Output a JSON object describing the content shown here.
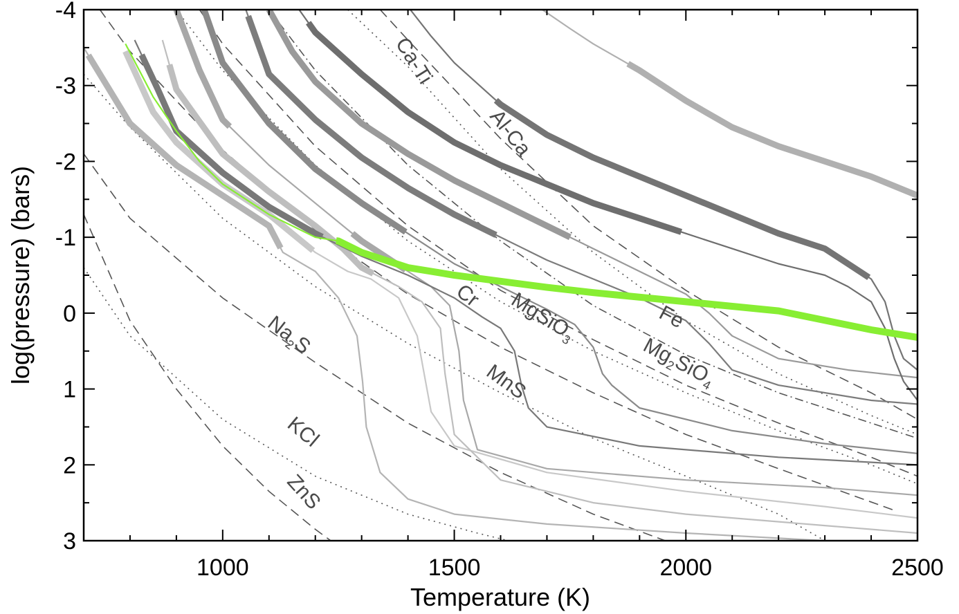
{
  "chart_data": {
    "type": "line",
    "title": "",
    "xlabel": "Temperature (K)",
    "ylabel": "log(pressure) (bars)",
    "xlim": [
      700,
      2500
    ],
    "ylim": [
      3,
      -4
    ],
    "y_inverted": true,
    "x_ticks": [
      1000,
      1500,
      2000,
      2500
    ],
    "x_tick_labels": [
      "1000",
      "1500",
      "2000",
      "2500"
    ],
    "y_ticks": [
      -4,
      -3,
      -2,
      -1,
      0,
      1,
      2,
      3
    ],
    "y_tick_labels": [
      "-4",
      "-3",
      "-2",
      "-1",
      "0",
      "1",
      "2",
      "3"
    ],
    "grid": false,
    "legend": "none",
    "condensation_curves": [
      {
        "label": "ZnS",
        "label_parts": [
          {
            "t": "ZnS"
          }
        ],
        "style": "dashed",
        "x": [
          700,
          800,
          900,
          1000,
          1100,
          1200,
          1300
        ],
        "y": [
          -1.3,
          0.1,
          1.0,
          1.75,
          2.35,
          2.85,
          3.3
        ]
      },
      {
        "label": "KCl",
        "label_parts": [
          {
            "t": "KCl"
          }
        ],
        "style": "dotted",
        "x": [
          700,
          800,
          1000,
          1200,
          1400,
          1550,
          1650
        ],
        "y": [
          -0.6,
          0.3,
          1.4,
          2.15,
          2.65,
          2.9,
          3.05
        ]
      },
      {
        "label": "Na2S",
        "label_parts": [
          {
            "t": "Na"
          },
          {
            "t": "2",
            "sub": true
          },
          {
            "t": "S"
          }
        ],
        "style": "dashed",
        "x": [
          700,
          800,
          1000,
          1200,
          1400,
          1600,
          1800,
          2000
        ],
        "y": [
          -2.1,
          -1.25,
          -0.2,
          0.65,
          1.45,
          2.1,
          2.65,
          3.1
        ]
      },
      {
        "label": "MnS",
        "label_parts": [
          {
            "t": "MnS"
          }
        ],
        "style": "dotted",
        "x": [
          700,
          800,
          1000,
          1200,
          1400,
          1600,
          1800,
          2000,
          2200,
          2300
        ],
        "y": [
          -3.15,
          -2.45,
          -1.25,
          -0.35,
          0.4,
          1.05,
          1.65,
          2.15,
          2.65,
          3.0
        ]
      },
      {
        "label": "Cr",
        "label_parts": [
          {
            "t": "Cr"
          }
        ],
        "style": "dashed",
        "x": [
          735,
          800,
          1000,
          1200,
          1400,
          1600,
          1800,
          2000,
          2200,
          2450
        ],
        "y": [
          -4.0,
          -3.45,
          -2.15,
          -1.1,
          -0.25,
          0.45,
          1.05,
          1.6,
          2.05,
          2.6
        ]
      },
      {
        "label": "MgSiO3",
        "label_parts": [
          {
            "t": "MgSiO"
          },
          {
            "t": "3",
            "sub": true
          }
        ],
        "style": "dotted",
        "x": [
          900,
          1000,
          1200,
          1400,
          1600,
          1800,
          2000,
          2200,
          2400,
          2500
        ],
        "y": [
          -4.0,
          -3.2,
          -1.95,
          -0.95,
          -0.15,
          0.5,
          1.05,
          1.55,
          2.0,
          2.25
        ]
      },
      {
        "label": "Mg2SiO4",
        "label_parts": [
          {
            "t": "Mg"
          },
          {
            "t": "2",
            "sub": true
          },
          {
            "t": "SiO"
          },
          {
            "t": "4",
            "sub": true
          }
        ],
        "style": "dashed",
        "x": [
          950,
          1000,
          1200,
          1400,
          1600,
          1800,
          2000,
          2200,
          2400,
          2500
        ],
        "y": [
          -4.0,
          -3.55,
          -2.2,
          -1.15,
          -0.3,
          0.35,
          0.95,
          1.45,
          1.9,
          2.15
        ]
      },
      {
        "label": "Fe",
        "label_parts": [
          {
            "t": "Fe"
          }
        ],
        "style": "dashdot",
        "x": [
          1100,
          1200,
          1400,
          1600,
          1800,
          2000,
          2200,
          2400,
          2500
        ],
        "y": [
          -4.0,
          -3.2,
          -1.95,
          -0.95,
          -0.1,
          0.55,
          1.05,
          1.45,
          1.65
        ]
      },
      {
        "label": "Al-Ca",
        "label_parts": [
          {
            "t": "Al-Ca"
          }
        ],
        "style": "dashed",
        "x": [
          1340,
          1400,
          1600,
          1800,
          2000,
          2200,
          2400,
          2500
        ],
        "y": [
          -4.0,
          -3.6,
          -2.3,
          -1.15,
          -0.3,
          0.45,
          1.05,
          1.4
        ]
      },
      {
        "label": "Ca-Ti",
        "label_parts": [
          {
            "t": "Ca-Ti"
          }
        ],
        "style": "dotted",
        "x": [
          1270,
          1400,
          1600,
          1800,
          2000,
          2200,
          2400,
          2500
        ],
        "y": [
          -4.0,
          -3.25,
          -1.9,
          -0.8,
          0.1,
          0.8,
          1.35,
          1.6
        ]
      }
    ],
    "pt_profiles": [
      {
        "name": "",
        "color": "#b4b4b4",
        "x": [
          700,
          800,
          900,
          1000,
          1050,
          1100,
          1130,
          1200,
          1250,
          1290,
          1302,
          1310,
          1340,
          1400,
          1500,
          1700,
          2000,
          2300,
          2500
        ],
        "y": [
          -3.5,
          -2.5,
          -1.95,
          -1.55,
          -1.35,
          -1.15,
          -0.8,
          -0.55,
          -0.2,
          0.3,
          0.9,
          1.5,
          2.1,
          2.45,
          2.65,
          2.78,
          2.9,
          3.0,
          3.1
        ],
        "thick": [
          [
            710,
            1125
          ]
        ]
      },
      {
        "name": "",
        "color": "#c8c8c8",
        "x": [
          790,
          850,
          900,
          1000,
          1100,
          1150,
          1200,
          1270,
          1320,
          1380,
          1420,
          1435,
          1450,
          1500,
          1700,
          2000,
          2300,
          2500
        ],
        "y": [
          -3.45,
          -2.65,
          -2.25,
          -1.7,
          -1.3,
          -1.05,
          -0.8,
          -0.55,
          -0.45,
          -0.2,
          0.3,
          0.8,
          1.3,
          1.75,
          2.1,
          2.35,
          2.55,
          2.7
        ],
        "thick": [
          [
            785,
            1195
          ]
        ]
      },
      {
        "name": "",
        "color": "#bebebe",
        "x": [
          870,
          900,
          1000,
          1100,
          1200,
          1260,
          1300,
          1380,
          1430,
          1470,
          1480,
          1500,
          1600,
          1800,
          2000,
          2300,
          2500
        ],
        "y": [
          -3.6,
          -2.95,
          -2.1,
          -1.6,
          -1.15,
          -0.85,
          -0.6,
          -0.35,
          -0.15,
          0.2,
          0.8,
          1.6,
          2.2,
          2.5,
          2.65,
          2.8,
          2.9
        ],
        "thick": [
          [
            885,
            1325
          ]
        ]
      },
      {
        "name": "",
        "color": "#a8a8a8",
        "x": [
          900,
          950,
          1000,
          1100,
          1200,
          1300,
          1400,
          1450,
          1490,
          1510,
          1520,
          1550,
          1700,
          2000,
          2300,
          2500
        ],
        "y": [
          -4.0,
          -3.2,
          -2.55,
          -1.95,
          -1.45,
          -0.95,
          -0.55,
          -0.35,
          -0.1,
          0.5,
          1.15,
          1.8,
          2.05,
          2.2,
          2.3,
          2.4
        ],
        "thick": [
          [
            780,
            1015
          ],
          [
            1280,
            1395
          ]
        ]
      },
      {
        "name": "",
        "color": "#787878",
        "x": [
          810,
          860,
          900,
          1000,
          1100,
          1200,
          1300,
          1400,
          1500,
          1560,
          1600,
          1630,
          1645,
          1660,
          1700,
          1900,
          2200,
          2500
        ],
        "y": [
          -3.6,
          -2.95,
          -2.4,
          -1.85,
          -1.4,
          -1.05,
          -0.75,
          -0.5,
          -0.2,
          0.05,
          0.2,
          0.5,
          0.95,
          1.25,
          1.5,
          1.75,
          1.9,
          2.0
        ],
        "thick": [
          [
            825,
            1215
          ]
        ]
      },
      {
        "name": "",
        "color": "#8a8a8a",
        "x": [
          960,
          1000,
          1100,
          1200,
          1300,
          1400,
          1500,
          1600,
          1700,
          1760,
          1800,
          1820,
          1840,
          1900,
          2100,
          2300,
          2500
        ],
        "y": [
          -4.0,
          -3.3,
          -2.5,
          -1.9,
          -1.45,
          -1.05,
          -0.65,
          -0.35,
          -0.05,
          0.15,
          0.45,
          0.8,
          0.95,
          1.25,
          1.55,
          1.72,
          1.85
        ],
        "thick": [
          [
            900,
            1395
          ]
        ]
      },
      {
        "name": "",
        "color": "#7c7c7c",
        "x": [
          1050,
          1100,
          1200,
          1300,
          1400,
          1500,
          1600,
          1700,
          1800,
          1900,
          1950,
          2000,
          2050,
          2100,
          2200,
          2400,
          2500
        ],
        "y": [
          -4.0,
          -3.15,
          -2.55,
          -2.05,
          -1.65,
          -1.3,
          -1.0,
          -0.7,
          -0.45,
          -0.2,
          -0.05,
          0.1,
          0.4,
          0.75,
          0.95,
          1.15,
          1.2
        ],
        "thick": [
          [
            1055,
            1590
          ]
        ]
      },
      {
        "name": "",
        "color": "#9a9a9a",
        "x": [
          1100,
          1150,
          1200,
          1300,
          1400,
          1500,
          1600,
          1700,
          1800,
          1900,
          2000,
          2050,
          2100,
          2200,
          2350,
          2500
        ],
        "y": [
          -4.0,
          -3.45,
          -3.05,
          -2.5,
          -2.1,
          -1.75,
          -1.45,
          -1.15,
          -0.85,
          -0.55,
          -0.25,
          0.0,
          0.3,
          0.6,
          0.75,
          0.85
        ],
        "thick": [
          [
            1000,
            1750
          ]
        ]
      },
      {
        "name": "",
        "color": "#6e6e6e",
        "x": [
          1165,
          1200,
          1300,
          1400,
          1500,
          1600,
          1700,
          1800,
          1900,
          2000,
          2100,
          2200,
          2300,
          2350,
          2400,
          2430,
          2450,
          2470,
          2500
        ],
        "y": [
          -4.0,
          -3.7,
          -3.15,
          -2.65,
          -2.25,
          -1.95,
          -1.7,
          -1.45,
          -1.25,
          -1.05,
          -0.85,
          -0.65,
          -0.5,
          -0.35,
          -0.15,
          0.2,
          0.6,
          0.9,
          1.15
        ],
        "thick": [
          [
            1185,
            1990
          ]
        ]
      },
      {
        "name": "",
        "color": "#747474",
        "x": [
          1405,
          1450,
          1500,
          1600,
          1700,
          1800,
          1900,
          2000,
          2100,
          2200,
          2300,
          2350,
          2400,
          2430,
          2450,
          2470,
          2500
        ],
        "y": [
          -4.0,
          -3.65,
          -3.3,
          -2.75,
          -2.35,
          -2.05,
          -1.8,
          -1.55,
          -1.3,
          -1.05,
          -0.85,
          -0.65,
          -0.45,
          -0.15,
          0.3,
          0.6,
          0.75
        ],
        "thick": [
          [
            1590,
            2395
          ]
        ]
      },
      {
        "name": "",
        "color": "#b0b0b0",
        "x": [
          1690,
          1750,
          1800,
          1900,
          2000,
          2100,
          2200,
          2300,
          2400,
          2500
        ],
        "y": [
          -4.0,
          -3.75,
          -3.55,
          -3.2,
          -2.8,
          -2.45,
          -2.2,
          -2.0,
          -1.8,
          -1.55
        ],
        "thick": [
          [
            1875,
            2500
          ]
        ]
      }
    ],
    "highlight_profile": {
      "name": "",
      "color": "#88ee33",
      "x": [
        790,
        850,
        900,
        950,
        1000,
        1100,
        1200,
        1250,
        1300,
        1400,
        1500,
        1600,
        1700,
        1800,
        2000,
        2200,
        2400,
        2500
      ],
      "y": [
        -3.55,
        -2.85,
        -2.4,
        -2.0,
        -1.7,
        -1.3,
        -1.0,
        -0.95,
        -0.8,
        -0.6,
        -0.5,
        -0.42,
        -0.34,
        -0.27,
        -0.15,
        -0.03,
        0.22,
        0.32
      ],
      "thick": [
        [
          1245,
          2500
        ]
      ]
    }
  }
}
